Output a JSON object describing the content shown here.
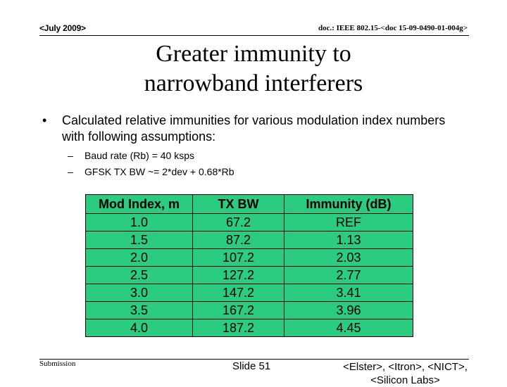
{
  "header": {
    "date": "<July 2009>",
    "doc_id": "doc.: IEEE 802.15-<doc 15-09-0490-01-004g>"
  },
  "title": {
    "line1": "Greater immunity to",
    "line2": "narrowband interferers"
  },
  "bullet": {
    "marker": "•",
    "text": "Calculated relative immunities for various modulation index numbers with following assumptions:"
  },
  "sub_bullets": [
    {
      "marker": "–",
      "text": "Baud rate (Rb) = 40 ksps"
    },
    {
      "marker": "–",
      "text": "GFSK TX BW ~= 2*dev + 0.68*Rb"
    }
  ],
  "table": {
    "fill_color": "#2bcc80",
    "headers": [
      "Mod Index, m",
      "TX BW",
      "Immunity (dB)"
    ],
    "rows": [
      [
        "1.0",
        "67.2",
        "REF"
      ],
      [
        "1.5",
        "87.2",
        "1.13"
      ],
      [
        "2.0",
        "107.2",
        "2.03"
      ],
      [
        "2.5",
        "127.2",
        "2.77"
      ],
      [
        "3.0",
        "147.2",
        "3.41"
      ],
      [
        "3.5",
        "167.2",
        "3.96"
      ],
      [
        "4.0",
        "187.2",
        "4.45"
      ]
    ]
  },
  "footer": {
    "submission": "Submission",
    "slide": "Slide 51",
    "authors": "<Elster>, <Itron>, <NICT>, <Silicon Labs>"
  }
}
